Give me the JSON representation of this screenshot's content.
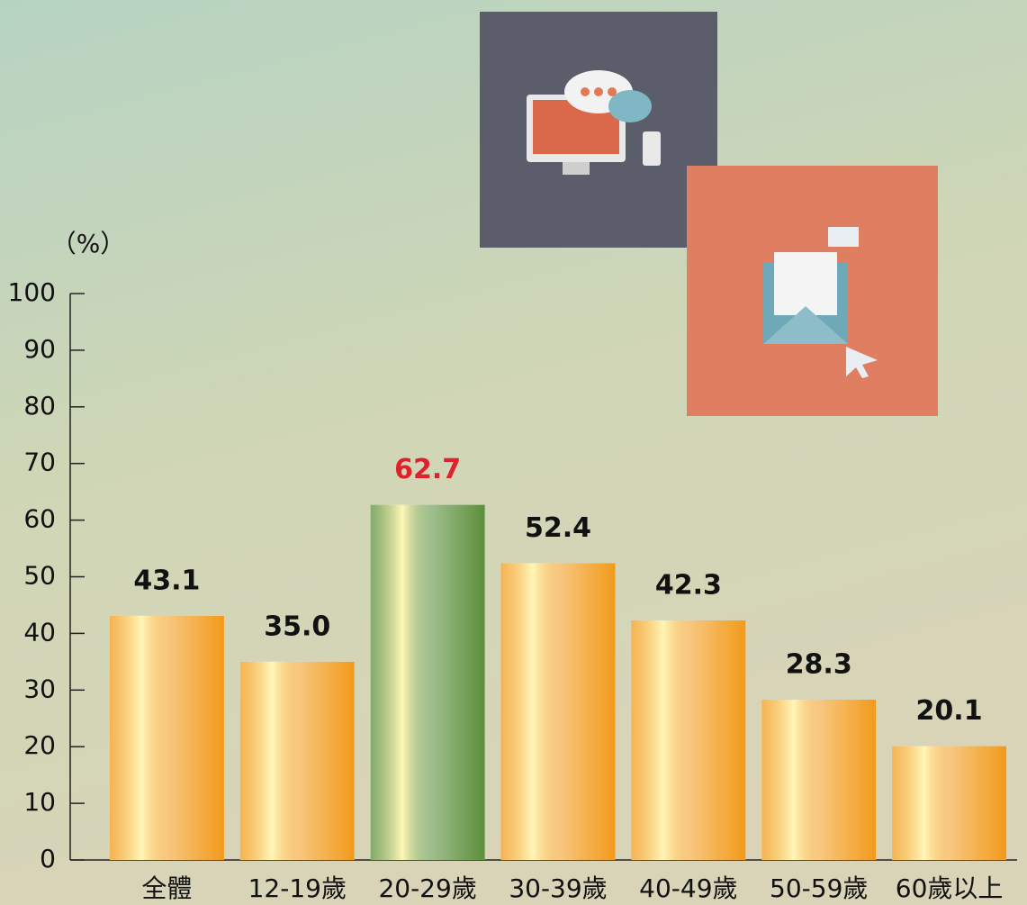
{
  "chart_data": {
    "type": "bar",
    "y_label": "（%）",
    "categories": [
      "全體",
      "12-19歲",
      "20-29歲",
      "30-39歲",
      "40-49歲",
      "50-59歲",
      "60歲以上"
    ],
    "values": [
      43.1,
      35,
      62.7,
      52.4,
      42.3,
      28.3,
      20.1
    ],
    "value_labels": [
      "43.1",
      "35.0",
      "62.7",
      "52.4",
      "42.3",
      "28.3",
      "20.1"
    ],
    "colors": [
      "#f29a1a",
      "#f29a1a",
      "#5b8f3a",
      "#f29a1a",
      "#f29a1a",
      "#f29a1a",
      "#f29a1a"
    ],
    "value_label_colors": [
      "#111111",
      "#111111",
      "#e0202a",
      "#111111",
      "#111111",
      "#111111",
      "#111111"
    ],
    "ylim": [
      0,
      100
    ],
    "yticks": [
      0,
      10,
      20,
      30,
      40,
      50,
      60,
      70,
      80,
      90,
      100
    ]
  }
}
